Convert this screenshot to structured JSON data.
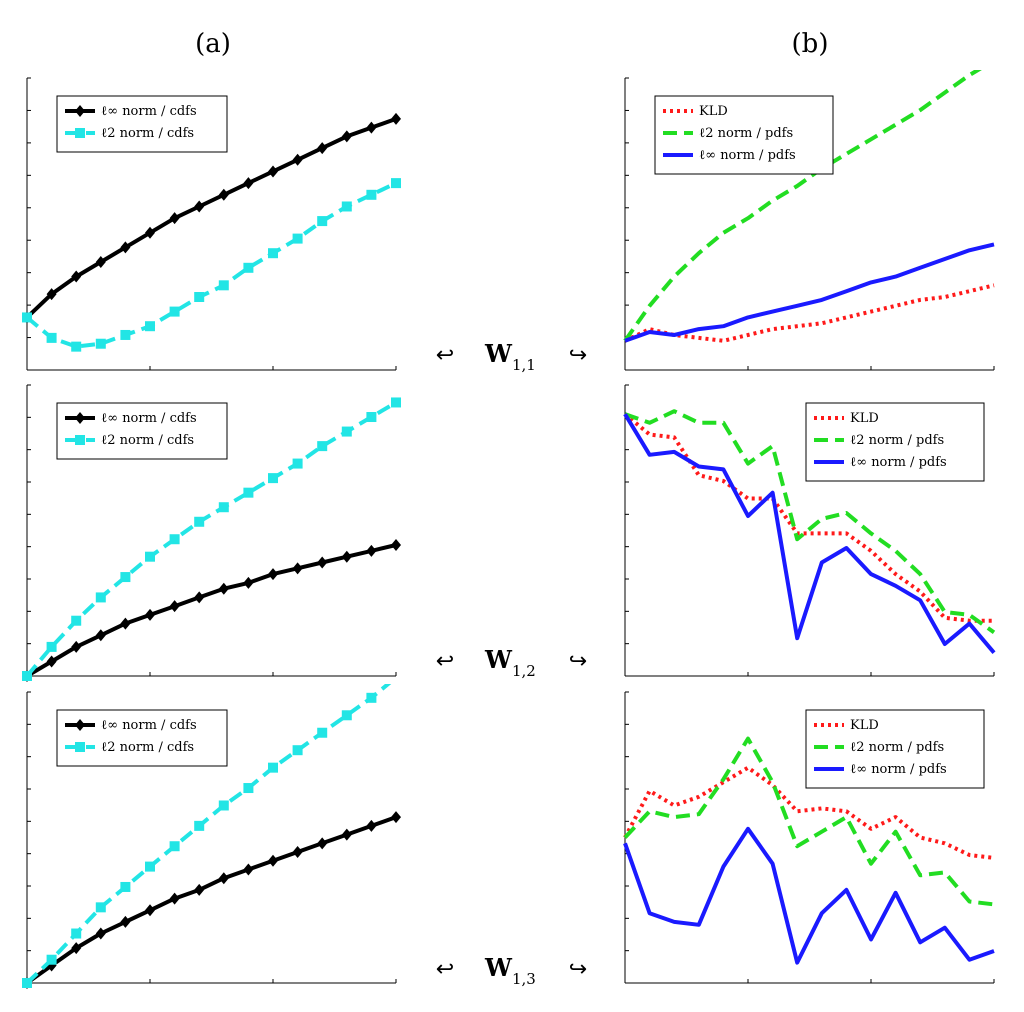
{
  "panel_labels": {
    "a": "(a)",
    "b": "(b)"
  },
  "row_labels": [
    {
      "main": "W",
      "sub": "1,1",
      "left_arrow": "↩",
      "right_arrow": "↪"
    },
    {
      "main": "W",
      "sub": "1,2",
      "left_arrow": "↩",
      "right_arrow": "↪"
    },
    {
      "main": "W",
      "sub": "1,3",
      "left_arrow": "↩",
      "right_arrow": "↪"
    }
  ],
  "colors": {
    "linf_cdfs": "#000000",
    "l2_cdfs": "#22e5e5",
    "kld": "#ff1a1a",
    "l2_pdfs": "#22dd22",
    "linf_pdfs": "#1a1aff"
  },
  "chart_data": [
    {
      "id": "a1",
      "type": "line",
      "column": "a",
      "row": 1,
      "xlim": [
        0,
        15
      ],
      "ylim": [
        0,
        1
      ],
      "legend_position": "top-left",
      "series": [
        {
          "name": "ℓ∞ norm / cdfs",
          "style": "solid",
          "marker": "diamond",
          "color": "#000000",
          "values": [
            0.18,
            0.26,
            0.32,
            0.37,
            0.42,
            0.47,
            0.52,
            0.56,
            0.6,
            0.64,
            0.68,
            0.72,
            0.76,
            0.8,
            0.83,
            0.86
          ]
        },
        {
          "name": "ℓ2 norm / cdfs",
          "style": "dashed",
          "marker": "square",
          "color": "#22e5e5",
          "values": [
            0.18,
            0.11,
            0.08,
            0.09,
            0.12,
            0.15,
            0.2,
            0.25,
            0.29,
            0.35,
            0.4,
            0.45,
            0.51,
            0.56,
            0.6,
            0.64
          ]
        }
      ]
    },
    {
      "id": "b1",
      "type": "line",
      "column": "b",
      "row": 1,
      "xlim": [
        0,
        15
      ],
      "ylim": [
        0,
        1
      ],
      "legend_position": "top-left",
      "series": [
        {
          "name": "KLD",
          "style": "dotted",
          "color": "#ff1a1a",
          "values": [
            0.1,
            0.14,
            0.12,
            0.11,
            0.1,
            0.12,
            0.14,
            0.15,
            0.16,
            0.18,
            0.2,
            0.22,
            0.24,
            0.25,
            0.27,
            0.29
          ]
        },
        {
          "name": "ℓ2 norm / pdfs",
          "style": "dashed",
          "color": "#22dd22",
          "values": [
            0.1,
            0.22,
            0.32,
            0.4,
            0.47,
            0.52,
            0.58,
            0.63,
            0.69,
            0.74,
            0.79,
            0.84,
            0.89,
            0.95,
            1.01,
            1.06
          ]
        },
        {
          "name": "ℓ∞ norm / pdfs",
          "style": "solid",
          "color": "#1a1aff",
          "values": [
            0.1,
            0.13,
            0.12,
            0.14,
            0.15,
            0.18,
            0.2,
            0.22,
            0.24,
            0.27,
            0.3,
            0.32,
            0.35,
            0.38,
            0.41,
            0.43
          ]
        }
      ]
    },
    {
      "id": "a2",
      "type": "line",
      "column": "a",
      "row": 2,
      "xlim": [
        0,
        15
      ],
      "ylim": [
        0,
        1
      ],
      "legend_position": "top-left",
      "series": [
        {
          "name": "ℓ∞ norm / cdfs",
          "style": "solid",
          "marker": "diamond",
          "color": "#000000",
          "values": [
            0.0,
            0.05,
            0.1,
            0.14,
            0.18,
            0.21,
            0.24,
            0.27,
            0.3,
            0.32,
            0.35,
            0.37,
            0.39,
            0.41,
            0.43,
            0.45
          ]
        },
        {
          "name": "ℓ2 norm / cdfs",
          "style": "dashed",
          "marker": "square",
          "color": "#22e5e5",
          "values": [
            0.0,
            0.1,
            0.19,
            0.27,
            0.34,
            0.41,
            0.47,
            0.53,
            0.58,
            0.63,
            0.68,
            0.73,
            0.79,
            0.84,
            0.89,
            0.94
          ]
        }
      ]
    },
    {
      "id": "b2",
      "type": "line",
      "column": "b",
      "row": 2,
      "xlim": [
        0,
        15
      ],
      "ylim": [
        0,
        1
      ],
      "legend_position": "top-right",
      "series": [
        {
          "name": "KLD",
          "style": "dotted",
          "color": "#ff1a1a",
          "values": [
            0.9,
            0.83,
            0.82,
            0.69,
            0.67,
            0.61,
            0.61,
            0.49,
            0.49,
            0.49,
            0.43,
            0.35,
            0.29,
            0.2,
            0.19,
            0.19
          ]
        },
        {
          "name": "ℓ2 norm / pdfs",
          "style": "dashed",
          "color": "#22dd22",
          "values": [
            0.9,
            0.87,
            0.91,
            0.87,
            0.87,
            0.73,
            0.79,
            0.47,
            0.54,
            0.56,
            0.49,
            0.43,
            0.35,
            0.22,
            0.21,
            0.15
          ]
        },
        {
          "name": "ℓ∞ norm / pdfs",
          "style": "solid",
          "color": "#1a1aff",
          "values": [
            0.9,
            0.76,
            0.77,
            0.72,
            0.71,
            0.55,
            0.63,
            0.13,
            0.39,
            0.44,
            0.35,
            0.31,
            0.26,
            0.11,
            0.18,
            0.08
          ]
        }
      ]
    },
    {
      "id": "a3",
      "type": "line",
      "column": "a",
      "row": 3,
      "xlim": [
        0,
        15
      ],
      "ylim": [
        0,
        1
      ],
      "legend_position": "top-left",
      "series": [
        {
          "name": "ℓ∞ norm / cdfs",
          "style": "solid",
          "marker": "diamond",
          "color": "#000000",
          "values": [
            0.0,
            0.06,
            0.12,
            0.17,
            0.21,
            0.25,
            0.29,
            0.32,
            0.36,
            0.39,
            0.42,
            0.45,
            0.48,
            0.51,
            0.54,
            0.57
          ]
        },
        {
          "name": "ℓ2 norm / cdfs",
          "style": "dashed",
          "marker": "square",
          "color": "#22e5e5",
          "values": [
            0.0,
            0.08,
            0.17,
            0.26,
            0.33,
            0.4,
            0.47,
            0.54,
            0.61,
            0.67,
            0.74,
            0.8,
            0.86,
            0.92,
            0.98,
            1.05
          ]
        }
      ]
    },
    {
      "id": "b3",
      "type": "line",
      "column": "b",
      "row": 3,
      "xlim": [
        0,
        15
      ],
      "ylim": [
        0,
        1
      ],
      "legend_position": "top-right",
      "series": [
        {
          "name": "KLD",
          "style": "dotted",
          "color": "#ff1a1a",
          "values": [
            0.5,
            0.66,
            0.61,
            0.64,
            0.69,
            0.74,
            0.68,
            0.59,
            0.6,
            0.59,
            0.53,
            0.57,
            0.5,
            0.48,
            0.44,
            0.43
          ]
        },
        {
          "name": "ℓ2 norm / pdfs",
          "style": "dashed",
          "color": "#22dd22",
          "values": [
            0.5,
            0.59,
            0.57,
            0.58,
            0.7,
            0.84,
            0.69,
            0.47,
            0.52,
            0.57,
            0.41,
            0.52,
            0.37,
            0.38,
            0.28,
            0.27
          ]
        },
        {
          "name": "ℓ∞ norm / pdfs",
          "style": "solid",
          "color": "#1a1aff",
          "values": [
            0.48,
            0.24,
            0.21,
            0.2,
            0.4,
            0.53,
            0.41,
            0.07,
            0.24,
            0.32,
            0.15,
            0.31,
            0.14,
            0.19,
            0.08,
            0.11
          ]
        }
      ]
    }
  ]
}
